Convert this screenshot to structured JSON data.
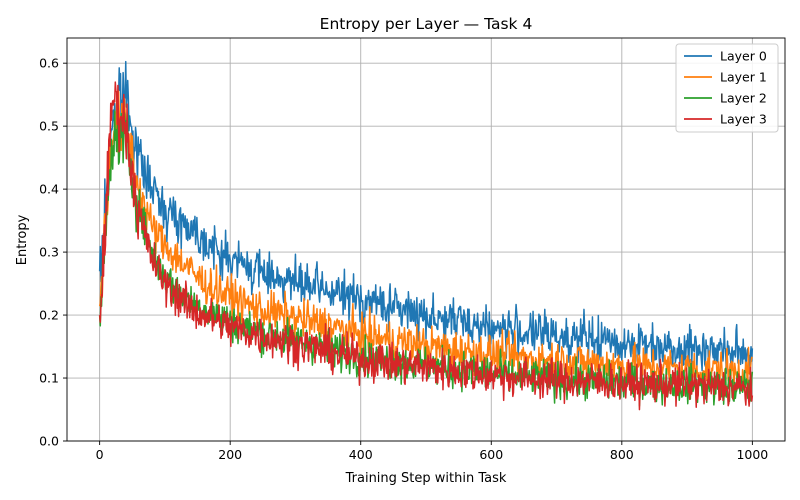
{
  "chart_data": {
    "type": "line",
    "title": "Entropy per Layer — Task 4",
    "xlabel": "Training Step within Task",
    "ylabel": "Entropy",
    "xlim": [
      -50,
      1050
    ],
    "ylim": [
      0.0,
      0.64
    ],
    "x_ticks": [
      0,
      200,
      400,
      600,
      800,
      1000
    ],
    "x_tick_labels": [
      "0",
      "200",
      "400",
      "600",
      "800",
      "1000"
    ],
    "y_ticks": [
      0.0,
      0.1,
      0.2,
      0.3,
      0.4,
      0.5,
      0.6
    ],
    "y_tick_labels": [
      "0.0",
      "0.1",
      "0.2",
      "0.3",
      "0.4",
      "0.5",
      "0.6"
    ],
    "grid": true,
    "legend_position": "top-right",
    "x_step": 20,
    "x_start": 0,
    "series": [
      {
        "name": "Layer 0",
        "color": "#1f77b4",
        "noise": 0.032,
        "values": [
          0.25,
          0.52,
          0.56,
          0.45,
          0.4,
          0.37,
          0.35,
          0.34,
          0.32,
          0.3,
          0.29,
          0.28,
          0.27,
          0.265,
          0.26,
          0.25,
          0.245,
          0.24,
          0.235,
          0.23,
          0.225,
          0.22,
          0.215,
          0.21,
          0.205,
          0.2,
          0.195,
          0.19,
          0.19,
          0.185,
          0.18,
          0.178,
          0.175,
          0.172,
          0.17,
          0.168,
          0.165,
          0.163,
          0.16,
          0.158,
          0.156,
          0.155,
          0.153,
          0.152,
          0.15,
          0.148,
          0.146,
          0.145,
          0.143,
          0.14,
          0.14
        ]
      },
      {
        "name": "Layer 1",
        "color": "#ff7f0e",
        "noise": 0.03,
        "values": [
          0.22,
          0.5,
          0.5,
          0.4,
          0.34,
          0.31,
          0.29,
          0.27,
          0.25,
          0.24,
          0.23,
          0.22,
          0.21,
          0.205,
          0.2,
          0.195,
          0.19,
          0.185,
          0.18,
          0.175,
          0.17,
          0.165,
          0.16,
          0.158,
          0.155,
          0.15,
          0.148,
          0.145,
          0.142,
          0.14,
          0.138,
          0.135,
          0.133,
          0.13,
          0.13,
          0.128,
          0.126,
          0.125,
          0.123,
          0.122,
          0.12,
          0.12,
          0.118,
          0.117,
          0.116,
          0.115,
          0.114,
          0.113,
          0.112,
          0.11,
          0.11
        ]
      },
      {
        "name": "Layer 2",
        "color": "#2ca02c",
        "noise": 0.028,
        "values": [
          0.2,
          0.48,
          0.48,
          0.37,
          0.3,
          0.26,
          0.24,
          0.22,
          0.21,
          0.2,
          0.19,
          0.18,
          0.175,
          0.17,
          0.165,
          0.16,
          0.155,
          0.15,
          0.145,
          0.14,
          0.135,
          0.13,
          0.128,
          0.125,
          0.122,
          0.12,
          0.118,
          0.115,
          0.112,
          0.11,
          0.108,
          0.105,
          0.103,
          0.1,
          0.1,
          0.098,
          0.097,
          0.096,
          0.095,
          0.094,
          0.093,
          0.092,
          0.091,
          0.09,
          0.09,
          0.089,
          0.088,
          0.087,
          0.086,
          0.085,
          0.085
        ]
      },
      {
        "name": "Layer 3",
        "color": "#d62728",
        "noise": 0.03,
        "values": [
          0.19,
          0.55,
          0.5,
          0.36,
          0.29,
          0.25,
          0.23,
          0.21,
          0.2,
          0.19,
          0.18,
          0.175,
          0.17,
          0.165,
          0.16,
          0.155,
          0.15,
          0.145,
          0.14,
          0.135,
          0.13,
          0.128,
          0.125,
          0.122,
          0.12,
          0.118,
          0.115,
          0.112,
          0.11,
          0.108,
          0.105,
          0.103,
          0.1,
          0.1,
          0.098,
          0.097,
          0.096,
          0.095,
          0.094,
          0.093,
          0.092,
          0.091,
          0.09,
          0.09,
          0.089,
          0.088,
          0.087,
          0.086,
          0.085,
          0.084,
          0.08
        ]
      }
    ]
  }
}
